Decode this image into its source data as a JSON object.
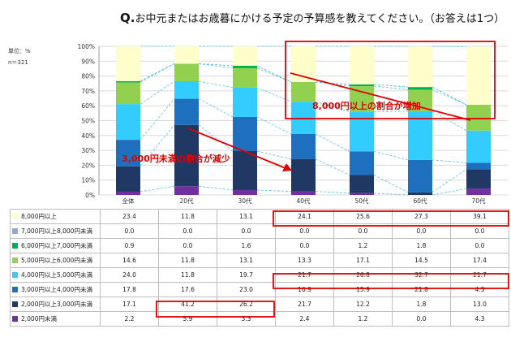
{
  "header": {
    "q": "Q.",
    "text": "お中元またはお歳暮にかける予定の予算感を教えてください。（お答えは1つ）"
  },
  "meta": {
    "unit": "単位：%",
    "n": "n＝321"
  },
  "chart_data": {
    "type": "bar",
    "stacked": true,
    "categories": [
      "全体",
      "20代",
      "30代",
      "40代",
      "50代",
      "60代",
      "70代"
    ],
    "ylim": [
      0,
      100
    ],
    "yticks": [
      "0%",
      "10%",
      "20%",
      "30%",
      "40%",
      "50%",
      "60%",
      "70%",
      "80%",
      "90%",
      "100%"
    ],
    "series": [
      {
        "name": "2,000円未満",
        "color": "#7030a0",
        "values": [
          2.2,
          5.9,
          3.3,
          2.4,
          1.2,
          0.0,
          4.3
        ]
      },
      {
        "name": "2,000円以上3,000円未満",
        "color": "#1f3864",
        "values": [
          17.1,
          41.2,
          26.2,
          21.7,
          12.2,
          1.8,
          13.0
        ]
      },
      {
        "name": "3,000円以上4,000円未満",
        "color": "#1f6fbf",
        "values": [
          17.8,
          17.6,
          23.0,
          16.9,
          15.9,
          21.8,
          4.3
        ]
      },
      {
        "name": "4,000円以上5,000円未満",
        "color": "#33ccff",
        "values": [
          24.0,
          11.8,
          19.7,
          21.7,
          26.8,
          32.7,
          21.7
        ]
      },
      {
        "name": "5,000円以上6,000円未満",
        "color": "#92d050",
        "values": [
          14.6,
          11.8,
          13.1,
          13.3,
          17.1,
          14.5,
          17.4
        ]
      },
      {
        "name": "6,000円以上7,000円未満",
        "color": "#00b050",
        "values": [
          0.9,
          0.0,
          1.6,
          0.0,
          1.2,
          1.8,
          0.0
        ]
      },
      {
        "name": "7,000円以上8,000円未満",
        "color": "#8eaadb",
        "values": [
          0.0,
          0.0,
          0.0,
          0.0,
          0.0,
          0.0,
          0.0
        ]
      },
      {
        "name": "8,000円以上",
        "color": "#ffffcc",
        "values": [
          23.4,
          11.8,
          13.1,
          24.1,
          25.6,
          27.3,
          39.1
        ]
      }
    ],
    "annotations": [
      {
        "text": "8,000円以上の割合が増加",
        "color": "#e00000"
      },
      {
        "text": "3,000円未満の割合が減少",
        "color": "#e00000"
      }
    ]
  },
  "table": {
    "row_order": [
      7,
      6,
      5,
      4,
      3,
      2,
      1,
      0
    ]
  }
}
